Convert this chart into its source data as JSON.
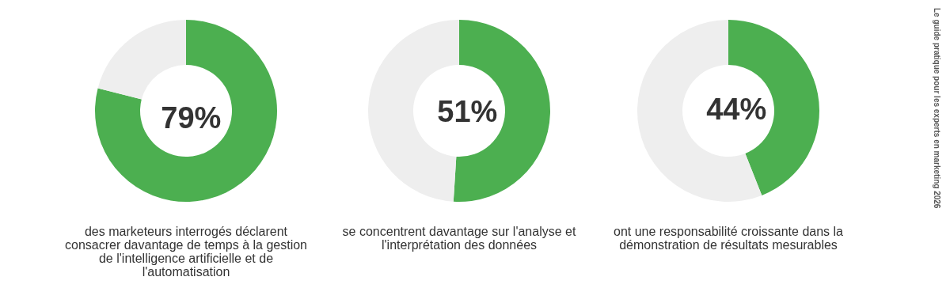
{
  "chart_data": [
    {
      "type": "donut",
      "categories": [
        null,
        null
      ],
      "values": [
        79,
        21
      ],
      "colors": [
        "#4caf50",
        "#eeeeee"
      ],
      "value_labels": [
        "79%",
        null
      ],
      "annotations": [
        "des marketeurs interrogés déclarent consacrer davantage de temps à la gestion de l'intelligence artificielle et de l'automatisation"
      ]
    },
    {
      "type": "donut",
      "categories": [
        null,
        null
      ],
      "values": [
        51,
        49
      ],
      "colors": [
        "#4caf50",
        "#eeeeee"
      ],
      "value_labels": [
        "51%",
        null
      ],
      "annotations": [
        "se concentrent davantage sur l'analyse et l'interprétation des données"
      ]
    },
    {
      "type": "donut",
      "categories": [
        null,
        null
      ],
      "values": [
        44,
        56
      ],
      "colors": [
        "#4caf50",
        "#eeeeee"
      ],
      "value_labels": [
        "44%",
        null
      ],
      "annotations": [
        "ont une responsabilité croissante dans la démonstration de résultats mesurables",
        "Le guide pratique pour les experts en marketing 2026"
      ]
    }
  ]
}
